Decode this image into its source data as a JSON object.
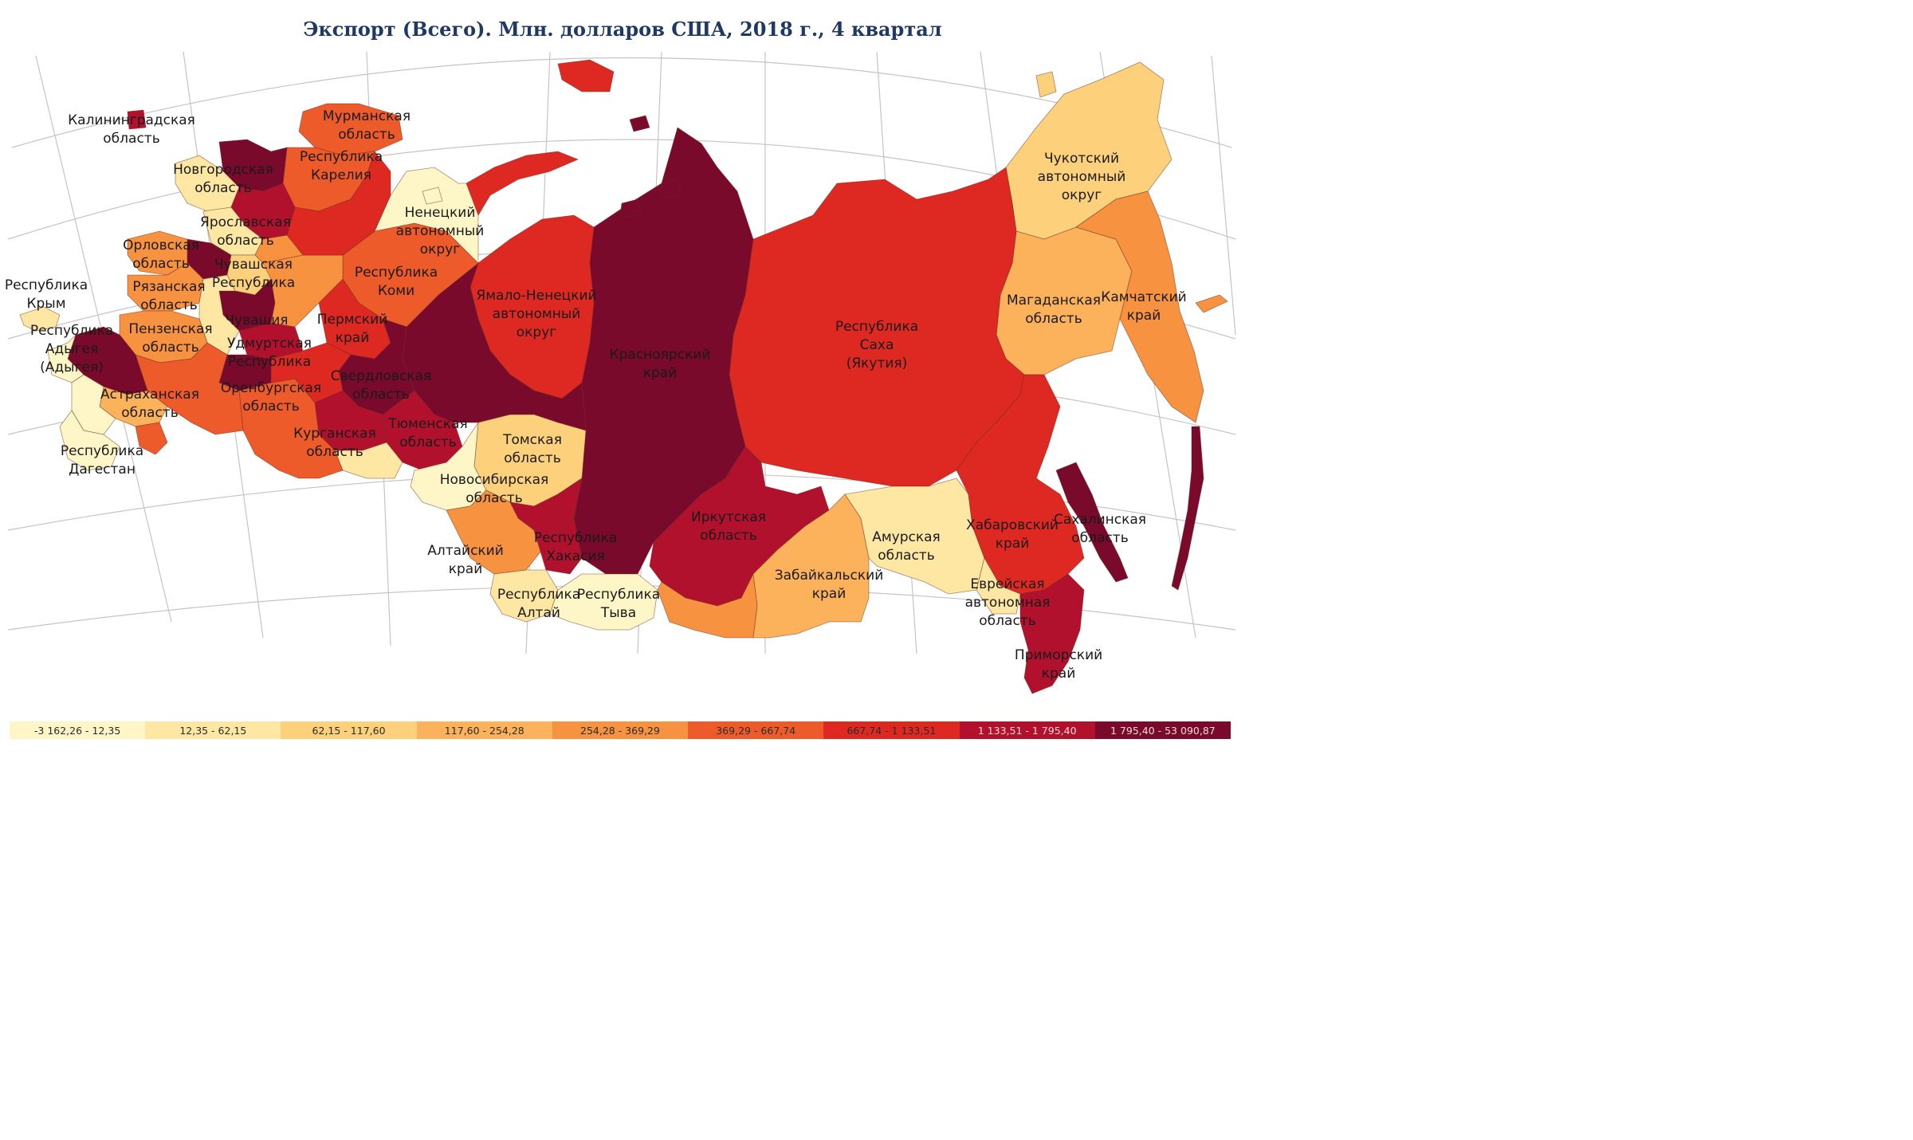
{
  "map": {
    "title": "Экспорт (Всего). Млн. долларов США, 2018 г., 4 квартал"
  },
  "palette": {
    "c1": "#fff6c7",
    "c2": "#fee7a3",
    "c3": "#fdd17b",
    "c4": "#fbb25a",
    "c5": "#f79240",
    "c6": "#ee5b2a",
    "c7": "#de2922",
    "c8": "#b2112e",
    "c9": "#7a0a2c"
  },
  "legend": {
    "items": [
      {
        "label": "-3 162,26 - 12,35",
        "color": "#fff6c7"
      },
      {
        "label": "12,35 - 62,15",
        "color": "#fee7a3"
      },
      {
        "label": "62,15 - 117,60",
        "color": "#fdd17b"
      },
      {
        "label": "117,60 - 254,28",
        "color": "#fbb25a"
      },
      {
        "label": "254,28 - 369,29",
        "color": "#f79240"
      },
      {
        "label": "369,29 - 667,74",
        "color": "#ee5b2a"
      },
      {
        "label": "667,74 - 1 133,51",
        "color": "#de2922"
      },
      {
        "label": "1 133,51 - 1 795,40",
        "color": "#b2112e"
      },
      {
        "label": "1 795,40 - 53 090,87",
        "color": "#7a0a2c"
      }
    ]
  },
  "regions": [
    {
      "key": "kaliningrad",
      "lines": [
        "Калининградская",
        "область"
      ]
    },
    {
      "key": "murmansk",
      "lines": [
        "Мурманская",
        "область"
      ]
    },
    {
      "key": "karelia",
      "lines": [
        "Республика",
        "Карелия"
      ]
    },
    {
      "key": "novgorod",
      "lines": [
        "Новгородская",
        "область"
      ]
    },
    {
      "key": "yaroslavl",
      "lines": [
        "Ярославская",
        "область"
      ]
    },
    {
      "key": "nenets",
      "lines": [
        "Ненецкий",
        "автономный",
        "округ"
      ]
    },
    {
      "key": "orel",
      "lines": [
        "Орловская",
        "область"
      ]
    },
    {
      "key": "chuvash_rep",
      "lines": [
        "Чувашская",
        "Республика"
      ]
    },
    {
      "key": "komi",
      "lines": [
        "Республика",
        "Коми"
      ]
    },
    {
      "key": "crimea",
      "lines": [
        "Республика",
        "Крым"
      ]
    },
    {
      "key": "ryazan",
      "lines": [
        "Рязанская",
        "область"
      ]
    },
    {
      "key": "chuvashia",
      "lines": [
        "Чувашия"
      ]
    },
    {
      "key": "perm",
      "lines": [
        "Пермский",
        "край"
      ]
    },
    {
      "key": "yamal",
      "lines": [
        "Ямало-Ненецкий",
        "автономный",
        "округ"
      ]
    },
    {
      "key": "adygea",
      "lines": [
        "Республика",
        "Адыгея",
        "(Адыгея)"
      ]
    },
    {
      "key": "penza",
      "lines": [
        "Пензенская",
        "область"
      ]
    },
    {
      "key": "udmurtia",
      "lines": [
        "Удмуртская",
        "Республика"
      ]
    },
    {
      "key": "sverdlovsk",
      "lines": [
        "Свердловская",
        "область"
      ]
    },
    {
      "key": "krasnoyarsk",
      "lines": [
        "Красноярский",
        "край"
      ]
    },
    {
      "key": "sakha",
      "lines": [
        "Республика",
        "Саха",
        "(Якутия)"
      ]
    },
    {
      "key": "orenburg",
      "lines": [
        "Оренбургская",
        "область"
      ]
    },
    {
      "key": "astrakhan",
      "lines": [
        "Астраханская",
        "область"
      ]
    },
    {
      "key": "tyumen",
      "lines": [
        "Тюменская",
        "область"
      ]
    },
    {
      "key": "kurgan",
      "lines": [
        "Курганская",
        "область"
      ]
    },
    {
      "key": "tomsk",
      "lines": [
        "Томская",
        "область"
      ]
    },
    {
      "key": "dagestan",
      "lines": [
        "Республика",
        "Дагестан"
      ]
    },
    {
      "key": "novosibirsk",
      "lines": [
        "Новосибирская",
        "область"
      ]
    },
    {
      "key": "chukotka",
      "lines": [
        "Чукотский",
        "автономный",
        "округ"
      ]
    },
    {
      "key": "magadan",
      "lines": [
        "Магаданская",
        "область"
      ]
    },
    {
      "key": "kamchatka",
      "lines": [
        "Камчатский",
        "край"
      ]
    },
    {
      "key": "irkutsk",
      "lines": [
        "Иркутская",
        "область"
      ]
    },
    {
      "key": "khakassia",
      "lines": [
        "Республика",
        "Хакасия"
      ]
    },
    {
      "key": "altai_krai",
      "lines": [
        "Алтайский",
        "край"
      ]
    },
    {
      "key": "amur",
      "lines": [
        "Амурская",
        "область"
      ]
    },
    {
      "key": "khabarovsk",
      "lines": [
        "Хабаровский",
        "край"
      ]
    },
    {
      "key": "sakhalin",
      "lines": [
        "Сахалинская",
        "область"
      ]
    },
    {
      "key": "zabaikalsky",
      "lines": [
        "Забайкальский",
        "край"
      ]
    },
    {
      "key": "altai_rep",
      "lines": [
        "Республика",
        "Алтай"
      ]
    },
    {
      "key": "tyva",
      "lines": [
        "Республика",
        "Тыва"
      ]
    },
    {
      "key": "jewish",
      "lines": [
        "Еврейская",
        "автономная",
        "область"
      ]
    },
    {
      "key": "primorsky",
      "lines": [
        "Приморский",
        "край"
      ]
    }
  ]
}
